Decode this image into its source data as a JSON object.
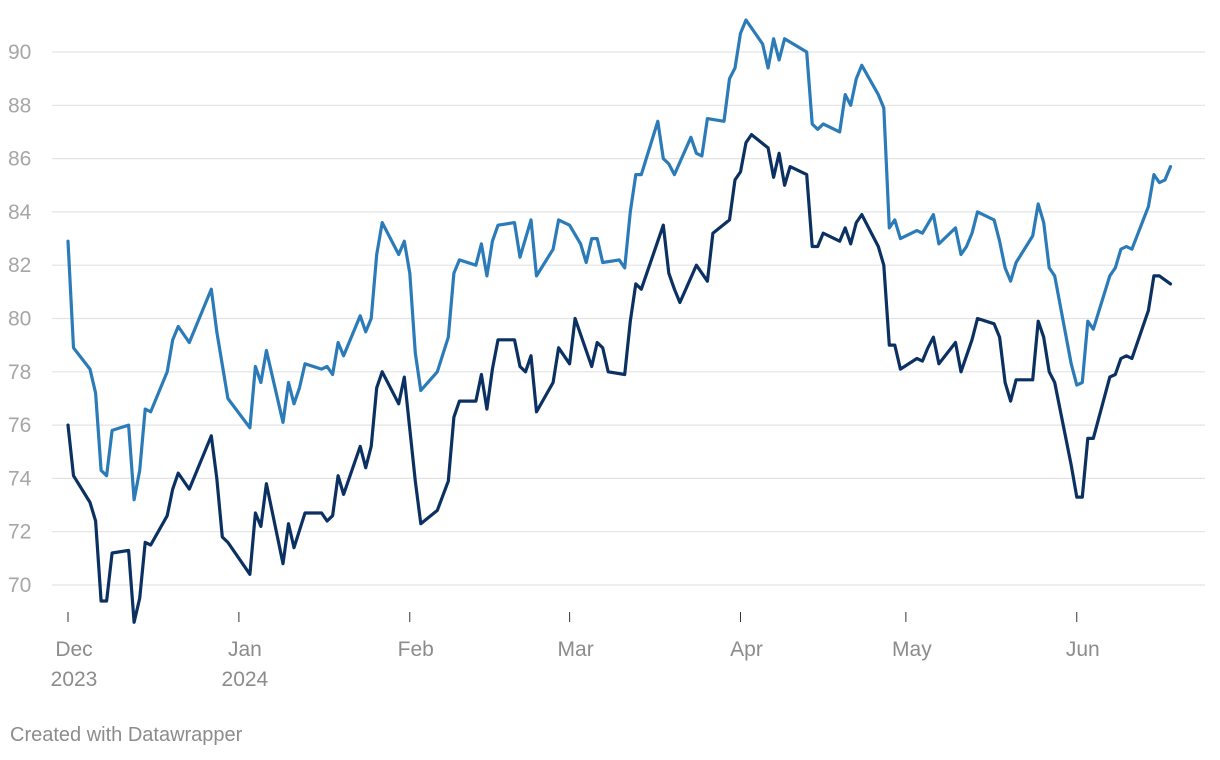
{
  "chart_data": {
    "type": "line",
    "title": "",
    "xlabel": "",
    "ylabel": "",
    "x_range": [
      "2023-12-01",
      "2024-06-21"
    ],
    "ylim": [
      68.5,
      91.5
    ],
    "y_ticks": [
      70,
      72,
      74,
      76,
      78,
      80,
      82,
      84,
      86,
      88,
      90
    ],
    "x_ticks": [
      {
        "date": "2023-12-01",
        "label": "Dec",
        "sublabel": "2023"
      },
      {
        "date": "2024-01-01",
        "label": "Jan",
        "sublabel": "2024"
      },
      {
        "date": "2024-02-01",
        "label": "Feb",
        "sublabel": ""
      },
      {
        "date": "2024-03-01",
        "label": "Mar",
        "sublabel": ""
      },
      {
        "date": "2024-04-01",
        "label": "Apr",
        "sublabel": ""
      },
      {
        "date": "2024-05-01",
        "label": "May",
        "sublabel": ""
      },
      {
        "date": "2024-06-01",
        "label": "Jun",
        "sublabel": ""
      }
    ],
    "grid": true,
    "legend": "none",
    "series": [
      {
        "color": "#2b7bb9",
        "points": [
          [
            "2023-12-01",
            82.9
          ],
          [
            "2023-12-02",
            78.9
          ],
          [
            "2023-12-05",
            78.1
          ],
          [
            "2023-12-06",
            77.2
          ],
          [
            "2023-12-07",
            74.3
          ],
          [
            "2023-12-08",
            74.1
          ],
          [
            "2023-12-09",
            75.8
          ],
          [
            "2023-12-12",
            76.0
          ],
          [
            "2023-12-13",
            73.2
          ],
          [
            "2023-12-14",
            74.3
          ],
          [
            "2023-12-15",
            76.6
          ],
          [
            "2023-12-16",
            76.5
          ],
          [
            "2023-12-19",
            78.0
          ],
          [
            "2023-12-20",
            79.2
          ],
          [
            "2023-12-21",
            79.7
          ],
          [
            "2023-12-23",
            79.1
          ],
          [
            "2023-12-27",
            81.1
          ],
          [
            "2023-12-28",
            79.5
          ],
          [
            "2023-12-30",
            77.0
          ],
          [
            "2024-01-03",
            75.9
          ],
          [
            "2024-01-04",
            78.2
          ],
          [
            "2024-01-05",
            77.6
          ],
          [
            "2024-01-06",
            78.8
          ],
          [
            "2024-01-09",
            76.1
          ],
          [
            "2024-01-10",
            77.6
          ],
          [
            "2024-01-11",
            76.8
          ],
          [
            "2024-01-12",
            77.4
          ],
          [
            "2024-01-13",
            78.3
          ],
          [
            "2024-01-16",
            78.1
          ],
          [
            "2024-01-17",
            78.2
          ],
          [
            "2024-01-18",
            77.9
          ],
          [
            "2024-01-19",
            79.1
          ],
          [
            "2024-01-20",
            78.6
          ],
          [
            "2024-01-23",
            80.1
          ],
          [
            "2024-01-24",
            79.5
          ],
          [
            "2024-01-25",
            80.0
          ],
          [
            "2024-01-26",
            82.4
          ],
          [
            "2024-01-27",
            83.6
          ],
          [
            "2024-01-30",
            82.4
          ],
          [
            "2024-01-31",
            82.9
          ],
          [
            "2024-02-01",
            81.7
          ],
          [
            "2024-02-02",
            78.7
          ],
          [
            "2024-02-03",
            77.3
          ],
          [
            "2024-02-06",
            78.0
          ],
          [
            "2024-02-08",
            79.3
          ],
          [
            "2024-02-09",
            81.7
          ],
          [
            "2024-02-10",
            82.2
          ],
          [
            "2024-02-13",
            82.0
          ],
          [
            "2024-02-14",
            82.8
          ],
          [
            "2024-02-15",
            81.6
          ],
          [
            "2024-02-16",
            82.9
          ],
          [
            "2024-02-17",
            83.5
          ],
          [
            "2024-02-20",
            83.6
          ],
          [
            "2024-02-21",
            82.3
          ],
          [
            "2024-02-23",
            83.7
          ],
          [
            "2024-02-24",
            81.6
          ],
          [
            "2024-02-27",
            82.6
          ],
          [
            "2024-02-28",
            83.7
          ],
          [
            "2024-03-01",
            83.5
          ],
          [
            "2024-03-03",
            82.8
          ],
          [
            "2024-03-04",
            82.1
          ],
          [
            "2024-03-05",
            83.0
          ],
          [
            "2024-03-06",
            83.0
          ],
          [
            "2024-03-07",
            82.1
          ],
          [
            "2024-03-10",
            82.2
          ],
          [
            "2024-03-11",
            81.9
          ],
          [
            "2024-03-12",
            84.0
          ],
          [
            "2024-03-13",
            85.4
          ],
          [
            "2024-03-14",
            85.4
          ],
          [
            "2024-03-17",
            87.4
          ],
          [
            "2024-03-18",
            86.0
          ],
          [
            "2024-03-19",
            85.8
          ],
          [
            "2024-03-20",
            85.4
          ],
          [
            "2024-03-23",
            86.8
          ],
          [
            "2024-03-24",
            86.2
          ],
          [
            "2024-03-25",
            86.1
          ],
          [
            "2024-03-26",
            87.5
          ],
          [
            "2024-03-29",
            87.4
          ],
          [
            "2024-03-30",
            89.0
          ],
          [
            "2024-03-31",
            89.4
          ],
          [
            "2024-04-01",
            90.7
          ],
          [
            "2024-04-02",
            91.2
          ],
          [
            "2024-04-05",
            90.3
          ],
          [
            "2024-04-06",
            89.4
          ],
          [
            "2024-04-07",
            90.5
          ],
          [
            "2024-04-08",
            89.7
          ],
          [
            "2024-04-09",
            90.5
          ],
          [
            "2024-04-13",
            90.0
          ],
          [
            "2024-04-14",
            87.3
          ],
          [
            "2024-04-15",
            87.1
          ],
          [
            "2024-04-16",
            87.3
          ],
          [
            "2024-04-19",
            87.0
          ],
          [
            "2024-04-20",
            88.4
          ],
          [
            "2024-04-21",
            88.0
          ],
          [
            "2024-04-22",
            89.0
          ],
          [
            "2024-04-23",
            89.5
          ],
          [
            "2024-04-26",
            88.4
          ],
          [
            "2024-04-27",
            87.9
          ],
          [
            "2024-04-28",
            83.4
          ],
          [
            "2024-04-29",
            83.7
          ],
          [
            "2024-04-30",
            83.0
          ],
          [
            "2024-05-03",
            83.3
          ],
          [
            "2024-05-04",
            83.2
          ],
          [
            "2024-05-06",
            83.9
          ],
          [
            "2024-05-07",
            82.8
          ],
          [
            "2024-05-10",
            83.4
          ],
          [
            "2024-05-11",
            82.4
          ],
          [
            "2024-05-12",
            82.7
          ],
          [
            "2024-05-13",
            83.2
          ],
          [
            "2024-05-14",
            84.0
          ],
          [
            "2024-05-17",
            83.7
          ],
          [
            "2024-05-18",
            82.9
          ],
          [
            "2024-05-19",
            81.9
          ],
          [
            "2024-05-20",
            81.4
          ],
          [
            "2024-05-21",
            82.1
          ],
          [
            "2024-05-24",
            83.1
          ],
          [
            "2024-05-25",
            84.3
          ],
          [
            "2024-05-26",
            83.6
          ],
          [
            "2024-05-27",
            81.9
          ],
          [
            "2024-05-28",
            81.6
          ],
          [
            "2024-05-31",
            78.3
          ],
          [
            "2024-06-01",
            77.5
          ],
          [
            "2024-06-02",
            77.6
          ],
          [
            "2024-06-03",
            79.9
          ],
          [
            "2024-06-04",
            79.6
          ],
          [
            "2024-06-07",
            81.6
          ],
          [
            "2024-06-08",
            81.9
          ],
          [
            "2024-06-09",
            82.6
          ],
          [
            "2024-06-10",
            82.7
          ],
          [
            "2024-06-11",
            82.6
          ],
          [
            "2024-06-14",
            84.2
          ],
          [
            "2024-06-15",
            85.4
          ],
          [
            "2024-06-16",
            85.1
          ],
          [
            "2024-06-17",
            85.2
          ],
          [
            "2024-06-18",
            85.7
          ]
        ]
      },
      {
        "color": "#0b3162",
        "points": [
          [
            "2023-12-01",
            76.0
          ],
          [
            "2023-12-02",
            74.1
          ],
          [
            "2023-12-05",
            73.1
          ],
          [
            "2023-12-06",
            72.4
          ],
          [
            "2023-12-07",
            69.4
          ],
          [
            "2023-12-08",
            69.4
          ],
          [
            "2023-12-09",
            71.2
          ],
          [
            "2023-12-12",
            71.3
          ],
          [
            "2023-12-13",
            68.6
          ],
          [
            "2023-12-14",
            69.5
          ],
          [
            "2023-12-15",
            71.6
          ],
          [
            "2023-12-16",
            71.5
          ],
          [
            "2023-12-19",
            72.6
          ],
          [
            "2023-12-20",
            73.6
          ],
          [
            "2023-12-21",
            74.2
          ],
          [
            "2023-12-23",
            73.6
          ],
          [
            "2023-12-27",
            75.6
          ],
          [
            "2023-12-28",
            74.0
          ],
          [
            "2023-12-29",
            71.8
          ],
          [
            "2023-12-30",
            71.6
          ],
          [
            "2024-01-03",
            70.4
          ],
          [
            "2024-01-04",
            72.7
          ],
          [
            "2024-01-05",
            72.2
          ],
          [
            "2024-01-06",
            73.8
          ],
          [
            "2024-01-09",
            70.8
          ],
          [
            "2024-01-10",
            72.3
          ],
          [
            "2024-01-11",
            71.4
          ],
          [
            "2024-01-13",
            72.7
          ],
          [
            "2024-01-16",
            72.7
          ],
          [
            "2024-01-17",
            72.4
          ],
          [
            "2024-01-18",
            72.6
          ],
          [
            "2024-01-19",
            74.1
          ],
          [
            "2024-01-20",
            73.4
          ],
          [
            "2024-01-23",
            75.2
          ],
          [
            "2024-01-24",
            74.4
          ],
          [
            "2024-01-25",
            75.2
          ],
          [
            "2024-01-26",
            77.4
          ],
          [
            "2024-01-27",
            78.0
          ],
          [
            "2024-01-30",
            76.8
          ],
          [
            "2024-01-31",
            77.8
          ],
          [
            "2024-02-02",
            73.9
          ],
          [
            "2024-02-03",
            72.3
          ],
          [
            "2024-02-06",
            72.8
          ],
          [
            "2024-02-08",
            73.9
          ],
          [
            "2024-02-09",
            76.3
          ],
          [
            "2024-02-10",
            76.9
          ],
          [
            "2024-02-13",
            76.9
          ],
          [
            "2024-02-14",
            77.9
          ],
          [
            "2024-02-15",
            76.6
          ],
          [
            "2024-02-16",
            78.1
          ],
          [
            "2024-02-17",
            79.2
          ],
          [
            "2024-02-20",
            79.2
          ],
          [
            "2024-02-21",
            78.2
          ],
          [
            "2024-02-22",
            78.0
          ],
          [
            "2024-02-23",
            78.6
          ],
          [
            "2024-02-24",
            76.5
          ],
          [
            "2024-02-27",
            77.6
          ],
          [
            "2024-02-28",
            78.9
          ],
          [
            "2024-02-29",
            78.6
          ],
          [
            "2024-03-01",
            78.3
          ],
          [
            "2024-03-02",
            80.0
          ],
          [
            "2024-03-05",
            78.2
          ],
          [
            "2024-03-06",
            79.1
          ],
          [
            "2024-03-07",
            78.9
          ],
          [
            "2024-03-08",
            78.0
          ],
          [
            "2024-03-11",
            77.9
          ],
          [
            "2024-03-12",
            79.9
          ],
          [
            "2024-03-13",
            81.3
          ],
          [
            "2024-03-14",
            81.1
          ],
          [
            "2024-03-17",
            82.9
          ],
          [
            "2024-03-18",
            83.5
          ],
          [
            "2024-03-19",
            81.7
          ],
          [
            "2024-03-20",
            81.1
          ],
          [
            "2024-03-21",
            80.6
          ],
          [
            "2024-03-24",
            82.0
          ],
          [
            "2024-03-26",
            81.4
          ],
          [
            "2024-03-27",
            83.2
          ],
          [
            "2024-03-30",
            83.7
          ],
          [
            "2024-03-31",
            85.2
          ],
          [
            "2024-04-01",
            85.5
          ],
          [
            "2024-04-02",
            86.6
          ],
          [
            "2024-04-03",
            86.9
          ],
          [
            "2024-04-06",
            86.4
          ],
          [
            "2024-04-07",
            85.3
          ],
          [
            "2024-04-08",
            86.2
          ],
          [
            "2024-04-09",
            85.0
          ],
          [
            "2024-04-10",
            85.7
          ],
          [
            "2024-04-13",
            85.4
          ],
          [
            "2024-04-14",
            82.7
          ],
          [
            "2024-04-15",
            82.7
          ],
          [
            "2024-04-16",
            83.2
          ],
          [
            "2024-04-19",
            82.9
          ],
          [
            "2024-04-20",
            83.4
          ],
          [
            "2024-04-21",
            82.8
          ],
          [
            "2024-04-22",
            83.6
          ],
          [
            "2024-04-23",
            83.9
          ],
          [
            "2024-04-26",
            82.7
          ],
          [
            "2024-04-27",
            82.0
          ],
          [
            "2024-04-28",
            79.0
          ],
          [
            "2024-04-29",
            79.0
          ],
          [
            "2024-04-30",
            78.1
          ],
          [
            "2024-05-03",
            78.5
          ],
          [
            "2024-05-04",
            78.4
          ],
          [
            "2024-05-05",
            78.9
          ],
          [
            "2024-05-06",
            79.3
          ],
          [
            "2024-05-07",
            78.3
          ],
          [
            "2024-05-10",
            79.1
          ],
          [
            "2024-05-11",
            78.0
          ],
          [
            "2024-05-13",
            79.2
          ],
          [
            "2024-05-14",
            80.0
          ],
          [
            "2024-05-17",
            79.8
          ],
          [
            "2024-05-18",
            79.3
          ],
          [
            "2024-05-19",
            77.6
          ],
          [
            "2024-05-20",
            76.9
          ],
          [
            "2024-05-21",
            77.7
          ],
          [
            "2024-05-24",
            77.7
          ],
          [
            "2024-05-25",
            79.9
          ],
          [
            "2024-05-26",
            79.3
          ],
          [
            "2024-05-27",
            78.0
          ],
          [
            "2024-05-28",
            77.6
          ],
          [
            "2024-05-31",
            74.5
          ],
          [
            "2024-06-01",
            73.3
          ],
          [
            "2024-06-02",
            73.3
          ],
          [
            "2024-06-03",
            75.5
          ],
          [
            "2024-06-04",
            75.5
          ],
          [
            "2024-06-07",
            77.8
          ],
          [
            "2024-06-08",
            77.9
          ],
          [
            "2024-06-09",
            78.5
          ],
          [
            "2024-06-10",
            78.6
          ],
          [
            "2024-06-11",
            78.5
          ],
          [
            "2024-06-14",
            80.3
          ],
          [
            "2024-06-15",
            81.6
          ],
          [
            "2024-06-16",
            81.6
          ],
          [
            "2024-06-18",
            81.3
          ]
        ]
      }
    ]
  },
  "footer": {
    "credit": "Created with Datawrapper"
  }
}
